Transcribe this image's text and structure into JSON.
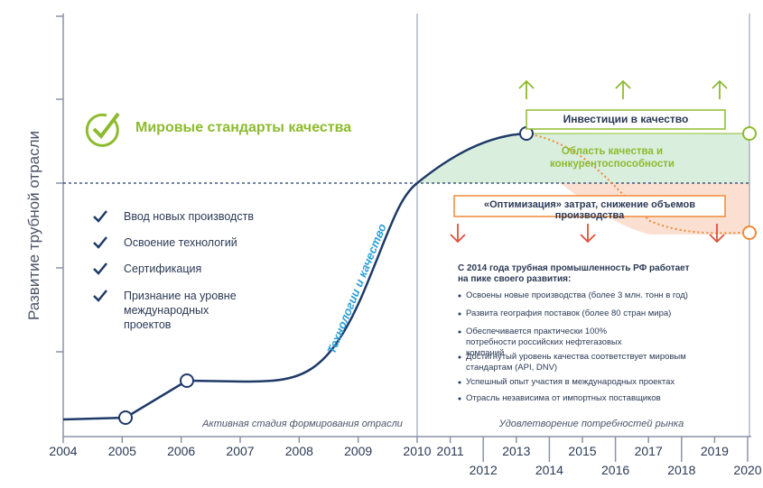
{
  "y_axis_label": "Развитие трубной отрасли",
  "headline": "Мировые стандарты качества",
  "checklist": [
    "Ввод новых производств",
    "Освоение технологий",
    "Сертификация",
    "Признание на уровне международных проектов"
  ],
  "curve_label": "Технологии и качество",
  "area_label": "Область качества и конкурентоспособности",
  "invest_label": "Инвестиции в качество",
  "optimization_label": "«Оптимизация» затрат, снижение объемов производства",
  "stage_labels": [
    "Активная стадия формирования отрасли",
    "Удовлетворение потребностей рынка"
  ],
  "summary": {
    "title": "С 2014 года трубная промышленность РФ работает на пике своего развития:",
    "items": [
      "Освоены новые производства (более 3 млн. тонн в год)",
      "Развита география поставок (более 80 стран мира)",
      "Обеспечивается практически 100% потребности российских нефтегазовых компаний",
      "Достигнутый уровень качества соответствует мировым стандартам (API, DNV)",
      "Успешный опыт участия в международных проектах",
      "Отрасль независима от импортных поставщиков"
    ]
  },
  "years": [
    "2004",
    "2005",
    "2006",
    "2007",
    "2008",
    "2009",
    "2010",
    "2011",
    "2012",
    "2013",
    "2014",
    "2015",
    "2016",
    "2017",
    "2018",
    "2019",
    "2020"
  ]
}
